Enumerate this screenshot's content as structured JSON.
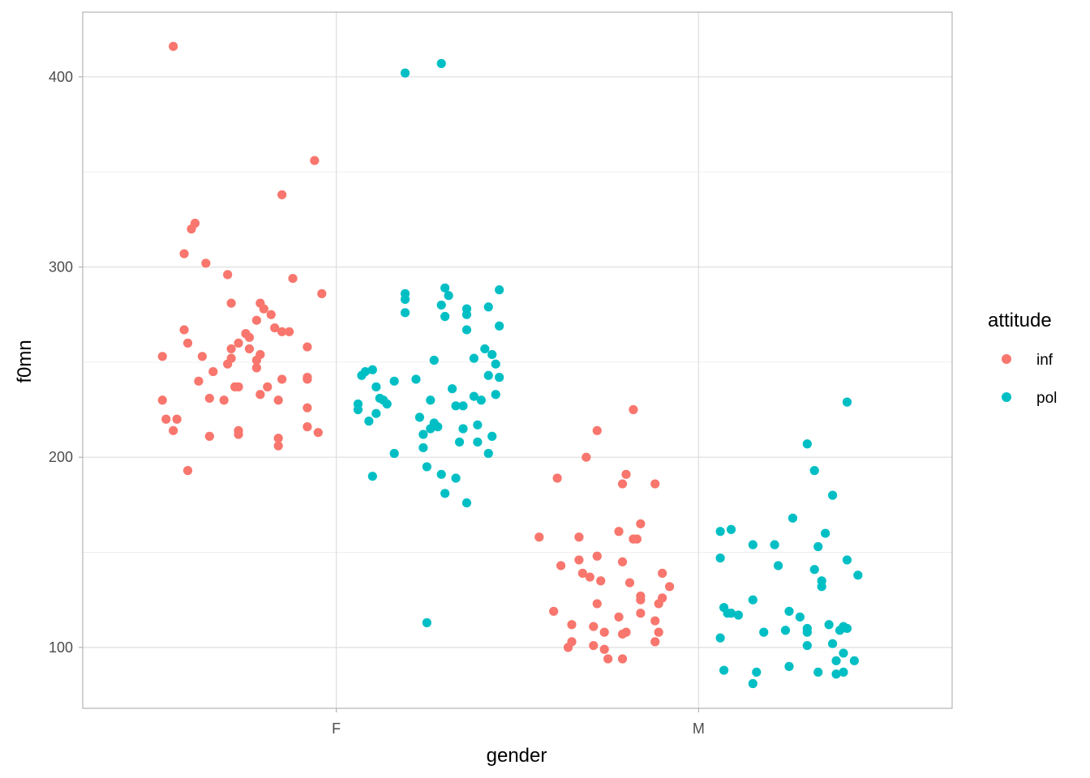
{
  "chart_data": {
    "type": "scatter",
    "jitter": true,
    "xlabel": "gender",
    "ylabel": "f0mn",
    "categories": [
      "F",
      "M"
    ],
    "ylim": [
      68,
      434
    ],
    "yticks": [
      100,
      200,
      300,
      400
    ],
    "grid": true,
    "legend": {
      "title": "attitude",
      "position": "right",
      "entries": [
        {
          "name": "inf",
          "color": "#F8766D"
        },
        {
          "name": "pol",
          "color": "#00BFC4"
        }
      ]
    },
    "series": [
      {
        "name": "inf",
        "color": "#F8766D",
        "points": [
          {
            "x": 0.55,
            "y": 416
          },
          {
            "x": 0.61,
            "y": 323
          },
          {
            "x": 0.6,
            "y": 320
          },
          {
            "x": 0.58,
            "y": 307
          },
          {
            "x": 0.64,
            "y": 302
          },
          {
            "x": 0.7,
            "y": 296
          },
          {
            "x": 0.58,
            "y": 267
          },
          {
            "x": 0.59,
            "y": 260
          },
          {
            "x": 0.52,
            "y": 253
          },
          {
            "x": 0.63,
            "y": 253
          },
          {
            "x": 0.66,
            "y": 245
          },
          {
            "x": 0.62,
            "y": 240
          },
          {
            "x": 0.65,
            "y": 231
          },
          {
            "x": 0.52,
            "y": 230
          },
          {
            "x": 0.53,
            "y": 220
          },
          {
            "x": 0.56,
            "y": 220
          },
          {
            "x": 0.55,
            "y": 214
          },
          {
            "x": 0.65,
            "y": 211
          },
          {
            "x": 0.59,
            "y": 193
          },
          {
            "x": 0.7,
            "y": 249
          },
          {
            "x": 0.71,
            "y": 252
          },
          {
            "x": 0.71,
            "y": 257
          },
          {
            "x": 0.73,
            "y": 260
          },
          {
            "x": 0.75,
            "y": 265
          },
          {
            "x": 0.76,
            "y": 263
          },
          {
            "x": 0.76,
            "y": 257
          },
          {
            "x": 0.78,
            "y": 251
          },
          {
            "x": 0.78,
            "y": 247
          },
          {
            "x": 0.72,
            "y": 237
          },
          {
            "x": 0.73,
            "y": 237
          },
          {
            "x": 0.79,
            "y": 233
          },
          {
            "x": 0.69,
            "y": 230
          },
          {
            "x": 0.73,
            "y": 214
          },
          {
            "x": 0.73,
            "y": 212
          },
          {
            "x": 0.71,
            "y": 281
          },
          {
            "x": 0.79,
            "y": 281
          },
          {
            "x": 0.8,
            "y": 278
          },
          {
            "x": 0.82,
            "y": 275
          },
          {
            "x": 0.78,
            "y": 272
          },
          {
            "x": 0.83,
            "y": 268
          },
          {
            "x": 0.79,
            "y": 254
          },
          {
            "x": 0.81,
            "y": 237
          },
          {
            "x": 0.85,
            "y": 241
          },
          {
            "x": 0.84,
            "y": 230
          },
          {
            "x": 0.84,
            "y": 210
          },
          {
            "x": 0.84,
            "y": 206
          },
          {
            "x": 0.85,
            "y": 266
          },
          {
            "x": 0.87,
            "y": 266
          },
          {
            "x": 0.85,
            "y": 338
          },
          {
            "x": 0.88,
            "y": 294
          },
          {
            "x": 0.94,
            "y": 356
          },
          {
            "x": 0.96,
            "y": 286
          },
          {
            "x": 0.92,
            "y": 258
          },
          {
            "x": 0.92,
            "y": 242
          },
          {
            "x": 0.92,
            "y": 241
          },
          {
            "x": 0.92,
            "y": 226
          },
          {
            "x": 0.92,
            "y": 216
          },
          {
            "x": 0.95,
            "y": 213
          },
          {
            "x": 1.56,
            "y": 158
          },
          {
            "x": 1.6,
            "y": 119
          },
          {
            "x": 1.62,
            "y": 143
          },
          {
            "x": 1.64,
            "y": 100
          },
          {
            "x": 1.65,
            "y": 112
          },
          {
            "x": 1.65,
            "y": 103
          },
          {
            "x": 1.67,
            "y": 158
          },
          {
            "x": 1.67,
            "y": 146
          },
          {
            "x": 1.68,
            "y": 139
          },
          {
            "x": 1.7,
            "y": 137
          },
          {
            "x": 1.71,
            "y": 111
          },
          {
            "x": 1.71,
            "y": 101
          },
          {
            "x": 1.72,
            "y": 123
          },
          {
            "x": 1.72,
            "y": 148
          },
          {
            "x": 1.73,
            "y": 135
          },
          {
            "x": 1.74,
            "y": 108
          },
          {
            "x": 1.74,
            "y": 99
          },
          {
            "x": 1.75,
            "y": 94
          },
          {
            "x": 1.72,
            "y": 214
          },
          {
            "x": 1.69,
            "y": 200
          },
          {
            "x": 1.61,
            "y": 189
          },
          {
            "x": 1.78,
            "y": 161
          },
          {
            "x": 1.78,
            "y": 116
          },
          {
            "x": 1.79,
            "y": 145
          },
          {
            "x": 1.79,
            "y": 186
          },
          {
            "x": 1.8,
            "y": 191
          },
          {
            "x": 1.79,
            "y": 107
          },
          {
            "x": 1.8,
            "y": 108
          },
          {
            "x": 1.81,
            "y": 134
          },
          {
            "x": 1.82,
            "y": 157
          },
          {
            "x": 1.83,
            "y": 157
          },
          {
            "x": 1.84,
            "y": 127
          },
          {
            "x": 1.84,
            "y": 125
          },
          {
            "x": 1.84,
            "y": 118
          },
          {
            "x": 1.84,
            "y": 165
          },
          {
            "x": 1.82,
            "y": 225
          },
          {
            "x": 1.88,
            "y": 186
          },
          {
            "x": 1.88,
            "y": 114
          },
          {
            "x": 1.88,
            "y": 103
          },
          {
            "x": 1.89,
            "y": 123
          },
          {
            "x": 1.89,
            "y": 108
          },
          {
            "x": 1.9,
            "y": 139
          },
          {
            "x": 1.9,
            "y": 126
          },
          {
            "x": 1.92,
            "y": 132
          },
          {
            "x": 1.79,
            "y": 94
          }
        ]
      },
      {
        "name": "pol",
        "color": "#00BFC4",
        "points": [
          {
            "x": 1.06,
            "y": 228
          },
          {
            "x": 1.06,
            "y": 225
          },
          {
            "x": 1.07,
            "y": 243
          },
          {
            "x": 1.08,
            "y": 245
          },
          {
            "x": 1.09,
            "y": 219
          },
          {
            "x": 1.1,
            "y": 246
          },
          {
            "x": 1.1,
            "y": 190
          },
          {
            "x": 1.11,
            "y": 237
          },
          {
            "x": 1.11,
            "y": 223
          },
          {
            "x": 1.12,
            "y": 231
          },
          {
            "x": 1.13,
            "y": 230
          },
          {
            "x": 1.14,
            "y": 228
          },
          {
            "x": 1.16,
            "y": 202
          },
          {
            "x": 1.16,
            "y": 240
          },
          {
            "x": 1.19,
            "y": 286
          },
          {
            "x": 1.19,
            "y": 283
          },
          {
            "x": 1.19,
            "y": 276
          },
          {
            "x": 1.19,
            "y": 402
          },
          {
            "x": 1.22,
            "y": 241
          },
          {
            "x": 1.23,
            "y": 221
          },
          {
            "x": 1.24,
            "y": 205
          },
          {
            "x": 1.24,
            "y": 212
          },
          {
            "x": 1.25,
            "y": 195
          },
          {
            "x": 1.25,
            "y": 113
          },
          {
            "x": 1.26,
            "y": 215
          },
          {
            "x": 1.26,
            "y": 230
          },
          {
            "x": 1.27,
            "y": 218
          },
          {
            "x": 1.27,
            "y": 251
          },
          {
            "x": 1.28,
            "y": 216
          },
          {
            "x": 1.29,
            "y": 407
          },
          {
            "x": 1.29,
            "y": 280
          },
          {
            "x": 1.29,
            "y": 191
          },
          {
            "x": 1.3,
            "y": 274
          },
          {
            "x": 1.3,
            "y": 289
          },
          {
            "x": 1.3,
            "y": 181
          },
          {
            "x": 1.31,
            "y": 285
          },
          {
            "x": 1.32,
            "y": 236
          },
          {
            "x": 1.33,
            "y": 227
          },
          {
            "x": 1.33,
            "y": 189
          },
          {
            "x": 1.34,
            "y": 208
          },
          {
            "x": 1.35,
            "y": 215
          },
          {
            "x": 1.35,
            "y": 227
          },
          {
            "x": 1.36,
            "y": 278
          },
          {
            "x": 1.36,
            "y": 275
          },
          {
            "x": 1.36,
            "y": 267
          },
          {
            "x": 1.36,
            "y": 176
          },
          {
            "x": 1.38,
            "y": 252
          },
          {
            "x": 1.38,
            "y": 232
          },
          {
            "x": 1.39,
            "y": 208
          },
          {
            "x": 1.39,
            "y": 217
          },
          {
            "x": 1.4,
            "y": 230
          },
          {
            "x": 1.41,
            "y": 257
          },
          {
            "x": 1.42,
            "y": 202
          },
          {
            "x": 1.42,
            "y": 243
          },
          {
            "x": 1.42,
            "y": 279
          },
          {
            "x": 1.43,
            "y": 211
          },
          {
            "x": 1.43,
            "y": 254
          },
          {
            "x": 1.44,
            "y": 249
          },
          {
            "x": 1.44,
            "y": 233
          },
          {
            "x": 1.45,
            "y": 242
          },
          {
            "x": 1.45,
            "y": 269
          },
          {
            "x": 1.45,
            "y": 288
          },
          {
            "x": 2.06,
            "y": 161
          },
          {
            "x": 2.06,
            "y": 105
          },
          {
            "x": 2.06,
            "y": 147
          },
          {
            "x": 2.07,
            "y": 121
          },
          {
            "x": 2.07,
            "y": 88
          },
          {
            "x": 2.08,
            "y": 118
          },
          {
            "x": 2.09,
            "y": 118
          },
          {
            "x": 2.09,
            "y": 162
          },
          {
            "x": 2.11,
            "y": 117
          },
          {
            "x": 2.15,
            "y": 125
          },
          {
            "x": 2.15,
            "y": 81
          },
          {
            "x": 2.15,
            "y": 154
          },
          {
            "x": 2.16,
            "y": 87
          },
          {
            "x": 2.18,
            "y": 108
          },
          {
            "x": 2.21,
            "y": 154
          },
          {
            "x": 2.22,
            "y": 143
          },
          {
            "x": 2.24,
            "y": 109
          },
          {
            "x": 2.25,
            "y": 90
          },
          {
            "x": 2.25,
            "y": 119
          },
          {
            "x": 2.26,
            "y": 168
          },
          {
            "x": 2.28,
            "y": 116
          },
          {
            "x": 2.3,
            "y": 108
          },
          {
            "x": 2.3,
            "y": 110
          },
          {
            "x": 2.3,
            "y": 101
          },
          {
            "x": 2.3,
            "y": 207
          },
          {
            "x": 2.32,
            "y": 193
          },
          {
            "x": 2.32,
            "y": 141
          },
          {
            "x": 2.33,
            "y": 153
          },
          {
            "x": 2.33,
            "y": 87
          },
          {
            "x": 2.34,
            "y": 132
          },
          {
            "x": 2.34,
            "y": 135
          },
          {
            "x": 2.35,
            "y": 160
          },
          {
            "x": 2.36,
            "y": 112
          },
          {
            "x": 2.37,
            "y": 180
          },
          {
            "x": 2.37,
            "y": 102
          },
          {
            "x": 2.38,
            "y": 93
          },
          {
            "x": 2.38,
            "y": 86
          },
          {
            "x": 2.39,
            "y": 109
          },
          {
            "x": 2.4,
            "y": 111
          },
          {
            "x": 2.4,
            "y": 97
          },
          {
            "x": 2.4,
            "y": 87
          },
          {
            "x": 2.41,
            "y": 146
          },
          {
            "x": 2.41,
            "y": 110
          },
          {
            "x": 2.41,
            "y": 229
          },
          {
            "x": 2.43,
            "y": 93
          },
          {
            "x": 2.44,
            "y": 138
          }
        ]
      }
    ]
  }
}
